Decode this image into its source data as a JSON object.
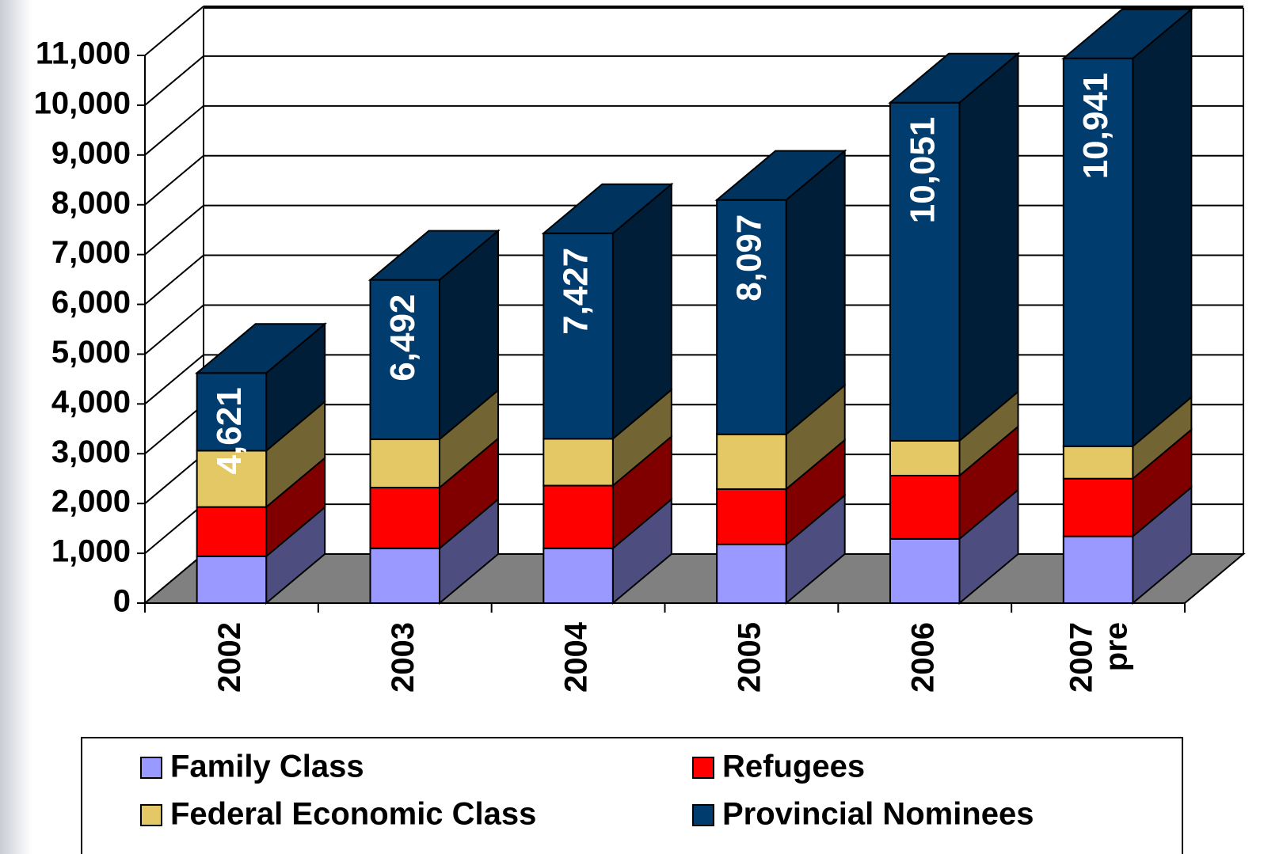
{
  "chart_data": {
    "type": "bar3d-stacked",
    "categories": [
      "2002",
      "2003",
      "2004",
      "2005",
      "2006",
      "2007 pre"
    ],
    "series": [
      {
        "name": "Family Class",
        "color": "#9999ff",
        "values": [
          940,
          1100,
          1100,
          1180,
          1290,
          1340
        ]
      },
      {
        "name": "Refugees",
        "color": "#ff0000",
        "values": [
          990,
          1220,
          1260,
          1110,
          1270,
          1160
        ]
      },
      {
        "name": "Federal Economic Class",
        "color": "#e5c866",
        "values": [
          1130,
          970,
          940,
          1100,
          700,
          650
        ]
      },
      {
        "name": "Provincial Nominees",
        "color": "#003c6e",
        "values": [
          1561,
          3202,
          4127,
          4707,
          6791,
          7791
        ]
      }
    ],
    "totals": [
      4621,
      6492,
      7427,
      8097,
      10051,
      10941
    ],
    "total_labels": [
      "4,621",
      "6,492",
      "7,427",
      "8,097",
      "10,051",
      "10,941"
    ],
    "ylim": [
      0,
      11000
    ],
    "yticks": [
      0,
      {
        "value": 1000,
        "label": "1,000"
      },
      {
        "value": 2000,
        "label": "2,000"
      },
      {
        "value": 3000,
        "label": "3,000"
      },
      {
        "value": 4000,
        "label": "4,000"
      },
      {
        "value": 5000,
        "label": "5,000"
      },
      {
        "value": 6000,
        "label": "6,000"
      },
      {
        "value": 7000,
        "label": "7,000"
      },
      {
        "value": 8000,
        "label": "8,000"
      },
      {
        "value": 9000,
        "label": "9,000"
      },
      {
        "value": 10000,
        "label": "10,000"
      },
      {
        "value": 11000,
        "label": "11,000"
      }
    ],
    "grid": true,
    "legend": "bottom",
    "floor_color": "#808080"
  }
}
